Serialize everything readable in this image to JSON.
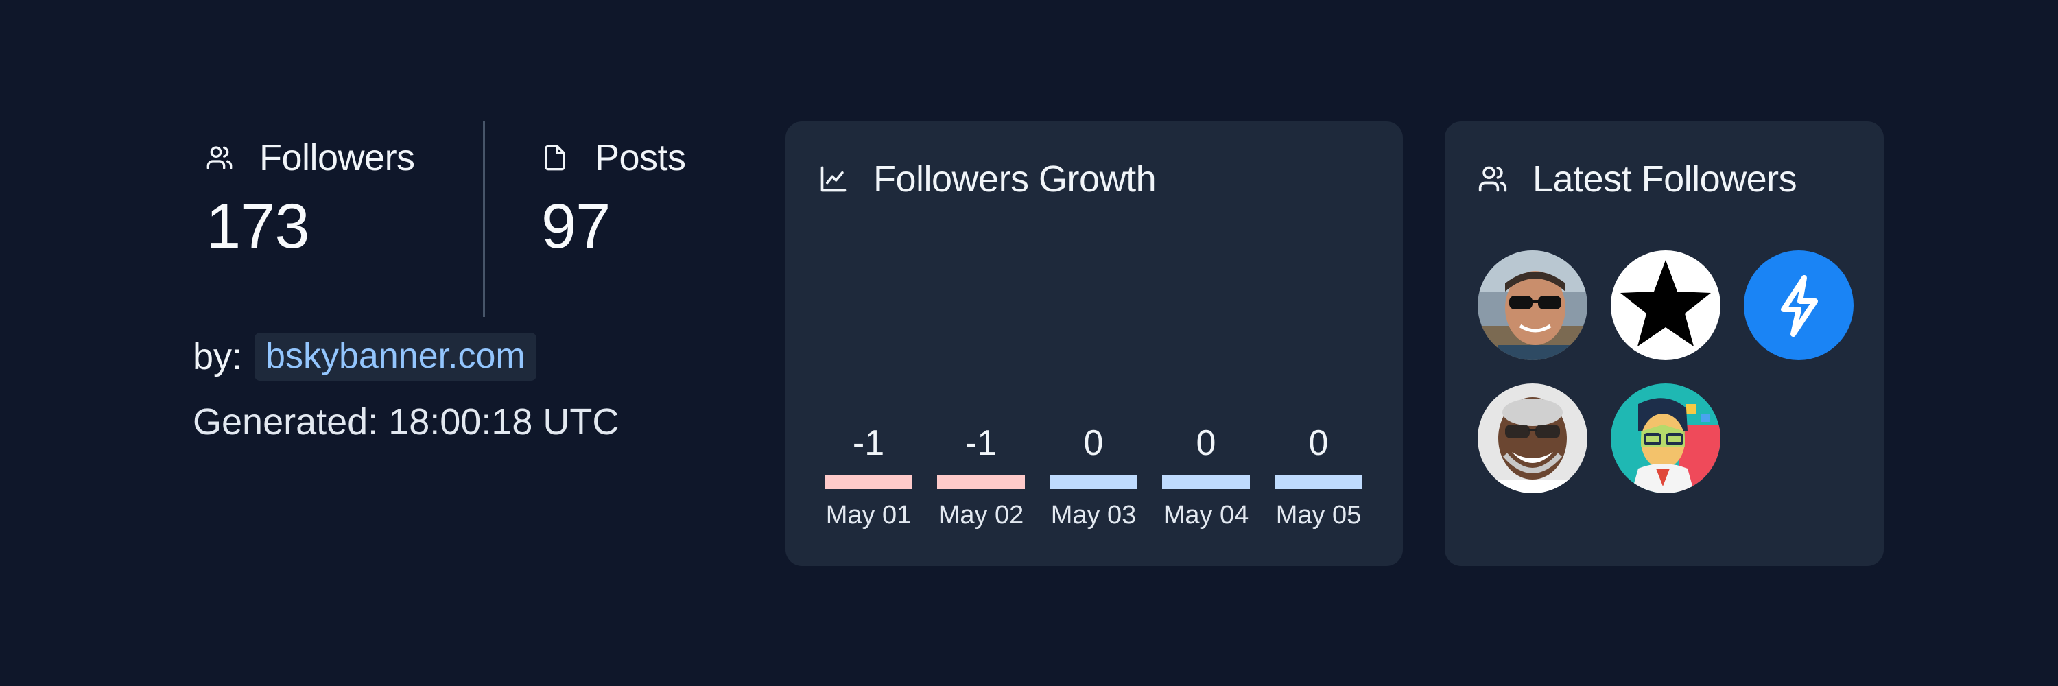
{
  "stats": {
    "followers": {
      "label": "Followers",
      "value": "173",
      "icon": "users-icon"
    },
    "posts": {
      "label": "Posts",
      "value": "97",
      "icon": "file-icon"
    }
  },
  "byline": {
    "label": "by:",
    "link": "bskybanner.com"
  },
  "generated": "Generated: 18:00:18 UTC",
  "growth_card": {
    "title": "Followers Growth",
    "icon": "line-chart-icon"
  },
  "latest_card": {
    "title": "Latest Followers",
    "icon": "users-icon"
  },
  "colors": {
    "background": "#0f172a",
    "card": "#1e293b",
    "negative_bar": "#fecaca",
    "neutral_bar": "#bfdbfe",
    "link": "#93c5fd"
  },
  "chart_data": {
    "type": "bar",
    "categories": [
      "May 01",
      "May 02",
      "May 03",
      "May 04",
      "May 05"
    ],
    "values": [
      -1,
      -1,
      0,
      0,
      0
    ],
    "value_labels": [
      "-1",
      "-1",
      "0",
      "0",
      "0"
    ]
  },
  "latest_followers": [
    {
      "icon": "avatar-photo-man-sunglasses"
    },
    {
      "icon": "avatar-star-icon"
    },
    {
      "icon": "avatar-lightning-icon"
    },
    {
      "icon": "avatar-photo-smiling-man"
    },
    {
      "icon": "avatar-pop-art-portrait"
    }
  ]
}
